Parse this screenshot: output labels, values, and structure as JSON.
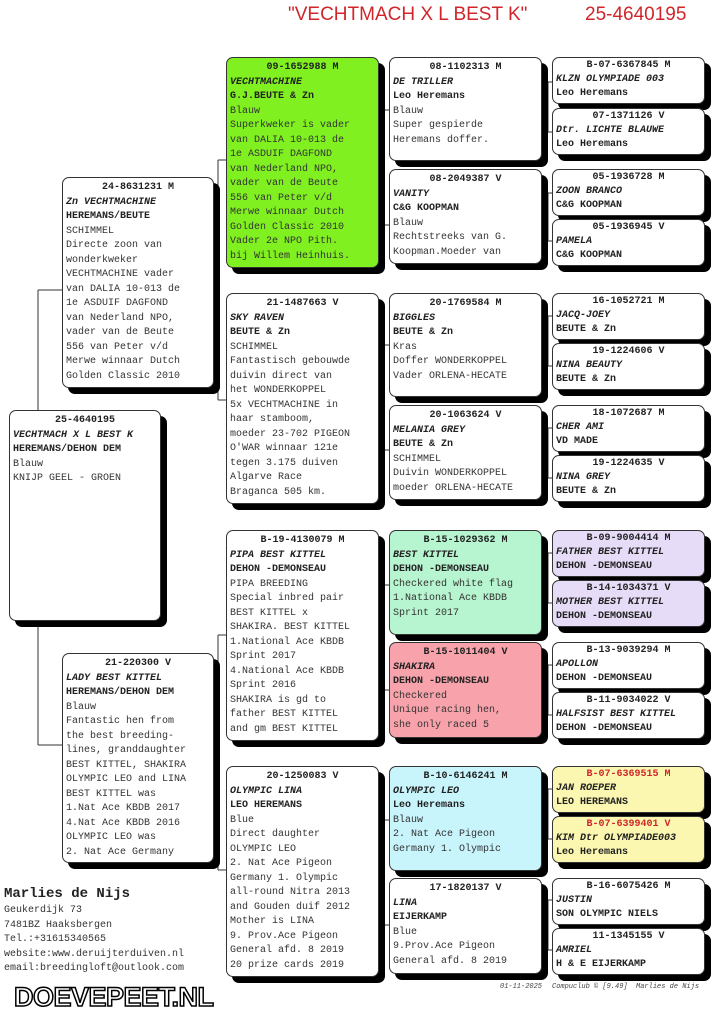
{
  "header": {
    "title": "\"VECHTMACH X L BEST K\"",
    "ring": "25-4640195",
    "color": "#d0262b"
  },
  "subject": {
    "id": "25-4640195",
    "name": "VECHTMACH X L BEST K",
    "owner": "HEREMANS/DEHON DEM",
    "color": "Blauw",
    "notes": [
      "KNIJP GEEL - GROEN"
    ],
    "bg": "#ffffff"
  },
  "parents": [
    {
      "id": "24-8631231 M",
      "name": "Zn VECHTMACHINE",
      "owner": "HEREMANS/BEUTE",
      "color": "SCHIMMEL",
      "notes": [
        "Directe zoon van",
        "wonderkweker",
        "VECHTMACHINE vader",
        "van DALIA 10-013 de",
        "1e ASDUIF DAGFOND",
        "van Nederland NPO,",
        "vader van de Beute",
        "556 van Peter v/d",
        "Merwe winnaar Dutch",
        "Golden Classic 2010"
      ],
      "bg": "#ffffff"
    },
    {
      "id": "21-220300 V",
      "name": "LADY BEST KITTEL",
      "owner": "HEREMANS/DEHON DEM",
      "color": "Blauw",
      "notes": [
        "Fantastic hen from",
        "the best breeding-",
        "lines, granddaughter",
        "BEST KITTEL, SHAKIRA",
        "OLYMPIC LEO and LINA",
        "BEST KITTEL was",
        "1.Nat Ace KBDB 2017",
        "4.Nat Ace KBDB 2016",
        "OLYMPIC LEO was",
        "2. Nat Ace Germany"
      ],
      "bg": "#ffffff"
    }
  ],
  "grandparents": [
    {
      "id": "09-1652988 M",
      "name": "VECHTMACHINE",
      "owner": "G.J.BEUTE & Zn",
      "color": "Blauw",
      "notes": [
        "Superkweker is vader",
        "van DALIA 10-013 de",
        "1e ASDUIF DAGFOND",
        "van Nederland NPO,",
        "vader van de Beute",
        "556 van Peter v/d",
        "Merwe winnaar Dutch",
        "Golden Classic 2010",
        "Vader 2e NPO Pith.",
        "bij Willem Heinhuis."
      ],
      "bg": "#80f020"
    },
    {
      "id": "21-1487663 V",
      "name": "SKY RAVEN",
      "owner": "BEUTE & Zn",
      "color": "SCHIMMEL",
      "notes": [
        "Fantastisch gebouwde",
        "duivin direct van",
        "het WONDERKOPPEL",
        "5x VECHTMACHINE in",
        "haar stamboom,",
        "moeder 23-702 PIGEON",
        "O'WAR winnaar 121e",
        "tegen 3.175 duiven",
        "Algarve Race",
        "Braganca 505 km."
      ],
      "bg": "#ffffff"
    },
    {
      "id": "B-19-4130079 M",
      "name": "PIPA BEST KITTEL",
      "owner": "DEHON -DEMONSEAU",
      "color": "PIPA BREEDING",
      "notes": [
        "Special inbred pair",
        "BEST KITTEL x",
        "SHAKIRA. BEST KITTEL",
        "1.National Ace KBDB",
        "Sprint 2017",
        "4.National Ace KBDB",
        "Sprint 2016",
        "SHAKIRA is gd to",
        "father BEST KITTEL",
        "and gm BEST KITTEL"
      ],
      "bg": "#ffffff"
    },
    {
      "id": "20-1250083 V",
      "name": "OLYMPIC LINA",
      "owner": "LEO HEREMANS",
      "color": "Blue",
      "notes": [
        "Direct daughter",
        "OLYMPIC LEO",
        "2. Nat Ace Pigeon",
        "Germany 1. Olympic",
        "all-round Nitra 2013",
        "and Gouden duif 2012",
        "Mother is LINA",
        "9. Prov.Ace Pigeon",
        "General afd. 8 2019",
        "20 prize cards 2019"
      ],
      "bg": "#ffffff"
    }
  ],
  "great_grandparents": [
    {
      "id": "08-1102313 M",
      "name": "DE TRILLER",
      "owner": "Leo Heremans",
      "color": "Blauw",
      "notes": [
        "Super gespierde",
        "Heremans doffer."
      ],
      "bg": "#ffffff"
    },
    {
      "id": "08-2049387 V",
      "name": "VANITY",
      "owner": "C&G KOOPMAN",
      "color": "Blauw",
      "notes": [
        "Rechtstreeks van G.",
        "Koopman.Moeder van"
      ],
      "bg": "#ffffff"
    },
    {
      "id": "20-1769584 M",
      "name": "BIGGLES",
      "owner": "BEUTE & Zn",
      "color": "Kras",
      "notes": [
        "Doffer WONDERKOPPEL",
        "Vader ORLENA-HECATE"
      ],
      "bg": "#ffffff"
    },
    {
      "id": "20-1063624 V",
      "name": "MELANIA GREY",
      "owner": "BEUTE & Zn",
      "color": "SCHIMMEL",
      "notes": [
        "Duivin WONDERKOPPEL",
        "moeder ORLENA-HECATE"
      ],
      "bg": "#ffffff"
    },
    {
      "id": "B-15-1029362 M",
      "name": "BEST KITTEL",
      "owner": "DEHON -DEMONSEAU",
      "color": "Checkered white flag",
      "notes": [
        "1.National Ace KBDB",
        "Sprint 2017"
      ],
      "bg": "#b6f5cf"
    },
    {
      "id": "B-15-1011404 V",
      "name": "SHAKIRA",
      "owner": "DEHON -DEMONSEAU",
      "color": "Checkered",
      "notes": [
        "Unique racing hen,",
        "she only raced 5"
      ],
      "bg": "#f8a3ab"
    },
    {
      "id": "B-10-6146241 M",
      "name": "OLYMPIC LEO",
      "owner": "Leo Heremans",
      "color": "Blauw",
      "notes": [
        "2. Nat Ace Pigeon",
        "Germany 1. Olympic"
      ],
      "bg": "#c8f4fb"
    },
    {
      "id": "17-1820137 V",
      "name": "LINA",
      "owner": "EIJERKAMP",
      "color": "Blue",
      "notes": [
        "9.Prov.Ace Pigeon",
        "General afd. 8 2019"
      ],
      "bg": "#ffffff"
    }
  ],
  "gen5": [
    {
      "id": "B-07-6367845 M",
      "name": "KLZN OLYMPIADE 003",
      "owner": "Leo Heremans",
      "bg": "#ffffff"
    },
    {
      "id": "07-1371126 V",
      "name": "Dtr. LICHTE BLAUWE",
      "owner": "Leo Heremans",
      "bg": "#ffffff"
    },
    {
      "id": "05-1936728 M",
      "name": "ZOON BRANCO",
      "owner": "C&G KOOPMAN",
      "bg": "#ffffff"
    },
    {
      "id": "05-1936945 V",
      "name": "PAMELA",
      "owner": "C&G KOOPMAN",
      "bg": "#ffffff"
    },
    {
      "id": "16-1052721 M",
      "name": "JACQ-JOEY",
      "owner": "BEUTE & Zn",
      "bg": "#ffffff"
    },
    {
      "id": "19-1224606 V",
      "name": "NINA BEAUTY",
      "owner": "BEUTE & Zn",
      "bg": "#ffffff"
    },
    {
      "id": "18-1072687 M",
      "name": "CHER AMI",
      "owner": "VD MADE",
      "bg": "#ffffff"
    },
    {
      "id": "19-1224635 V",
      "name": "NINA GREY",
      "owner": "BEUTE & Zn",
      "bg": "#ffffff"
    },
    {
      "id": "B-09-9004414 M",
      "name": "FATHER BEST KITTEL",
      "owner": "DEHON -DEMONSEAU",
      "bg": "#e6dcf7"
    },
    {
      "id": "B-14-1034371 V",
      "name": "MOTHER BEST KITTEL",
      "owner": "DEHON -DEMONSEAU",
      "bg": "#e6dcf7"
    },
    {
      "id": "B-13-9039294 M",
      "name": "APOLLON",
      "owner": "DEHON -DEMONSEAU",
      "bg": "#ffffff"
    },
    {
      "id": "B-11-9034022 V",
      "name": "HALFSIST BEST KITTEL",
      "owner": "DEHON -DEMONSEAU",
      "bg": "#ffffff"
    },
    {
      "id": "B-07-6369515 M",
      "name": "JAN ROEPER",
      "owner": "LEO HEREMANS",
      "bg": "#fbf7b0",
      "id_color": "#d0262b"
    },
    {
      "id": "B-07-6399401 V",
      "name": "KIM Dtr OLYMPIADE003",
      "owner": "Leo Heremans",
      "bg": "#fbf7b0",
      "id_color": "#d0262b"
    },
    {
      "id": "B-16-6075426 M",
      "name": "JUSTIN",
      "owner": "SON OLYMPIC NIELS",
      "bg": "#ffffff"
    },
    {
      "id": "11-1345155 V",
      "name": "AMRIEL",
      "owner": "H & E EIJERKAMP",
      "bg": "#ffffff"
    }
  ],
  "breeder": {
    "name": "Marlies de Nijs",
    "address": "Geukerdijk 73",
    "city": "7481BZ  Haaksbergen",
    "phone": "Tel.:+31615340565",
    "website": "website:www.deruijterduiven.nl",
    "email": "email:breedingloft@outlook.com"
  },
  "watermark": "DOEVEPEET.NL",
  "footer": {
    "date": "01-11-2025",
    "software": "Compuclub © [9.49]  Marlies de Nijs"
  }
}
